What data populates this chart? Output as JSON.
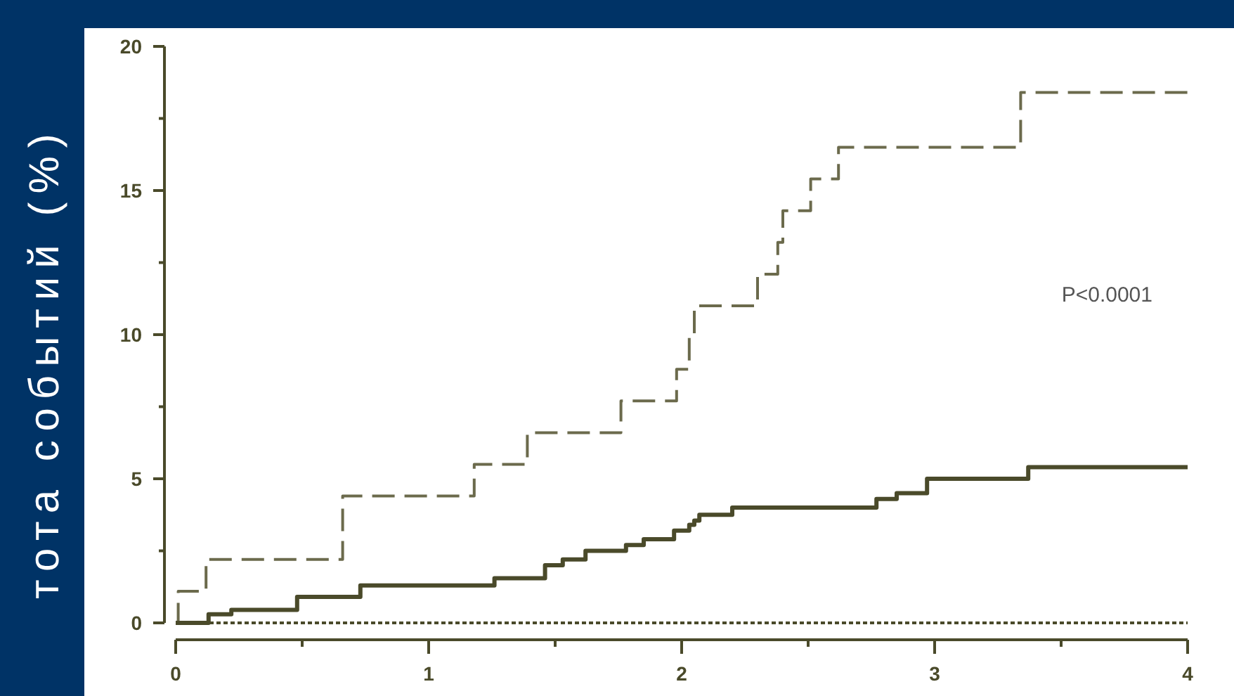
{
  "chart_data": {
    "type": "step",
    "ylabel": "тота событий (%)",
    "xlim": [
      0,
      4
    ],
    "ylim": [
      0,
      20
    ],
    "xticks": [
      0,
      {
        "value": 0.5,
        "label": null
      },
      1,
      {
        "value": 1.5,
        "label": null
      },
      2,
      {
        "value": 2.5,
        "label": null
      },
      3,
      {
        "value": 3.5,
        "label": null
      },
      4
    ],
    "yticks": [
      0,
      {
        "value": 2.5,
        "label": null
      },
      5,
      {
        "value": 7.5,
        "label": null
      },
      10,
      {
        "value": 12.5,
        "label": null
      },
      15,
      {
        "value": 17.5,
        "label": null
      },
      20
    ],
    "grid": false,
    "annotations": [
      "P<0.0001"
    ],
    "series": [
      {
        "color": "#6b6a4c",
        "line_style": "dashed",
        "x": [
          0,
          0.01,
          0.12,
          0.66,
          1.18,
          1.39,
          1.76,
          1.98,
          2.03,
          2.05,
          2.3,
          2.38,
          2.4,
          2.51,
          2.62,
          3.34,
          4
        ],
        "values": [
          0,
          1.1,
          2.2,
          4.4,
          5.5,
          6.6,
          7.7,
          8.8,
          9.9,
          11,
          12.1,
          13.2,
          14.3,
          15.4,
          16.5,
          18.4,
          18.4
        ]
      },
      {
        "color": "#4a4a2a",
        "line_style": "solid",
        "x": [
          0,
          0.13,
          0.22,
          0.48,
          0.73,
          1.26,
          1.46,
          1.53,
          1.62,
          1.78,
          1.85,
          1.97,
          2.03,
          2.05,
          2.07,
          2.2,
          2.77,
          2.85,
          2.97,
          3.37,
          4
        ],
        "values": [
          0,
          0.3,
          0.45,
          0.9,
          1.3,
          1.55,
          2.0,
          2.2,
          2.5,
          2.7,
          2.9,
          3.2,
          3.4,
          3.55,
          3.75,
          4.0,
          4.3,
          4.5,
          5.0,
          5.4,
          5.4
        ]
      },
      {
        "color": "#4a4a2a",
        "line_style": "dotted",
        "x": [
          0.05,
          4
        ],
        "values": [
          0,
          0
        ]
      }
    ]
  }
}
